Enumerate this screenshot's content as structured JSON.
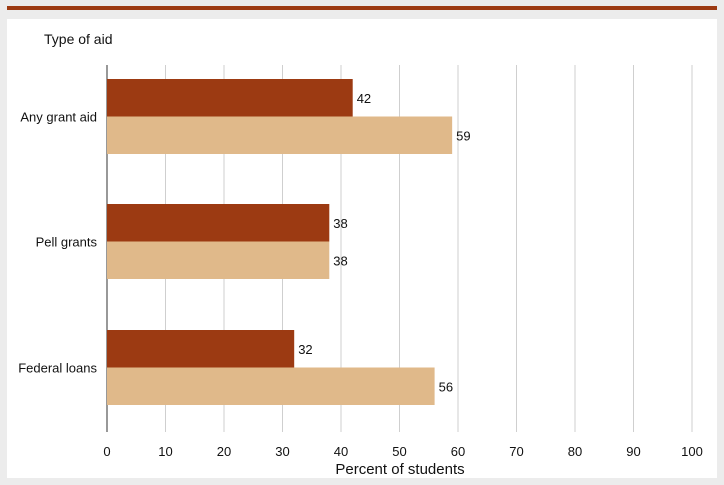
{
  "chart_data": {
    "type": "bar",
    "orientation": "horizontal",
    "categories": [
      "Any grant aid",
      "Pell grants",
      "Federal loans"
    ],
    "series": [
      {
        "values": [
          42,
          38,
          32
        ],
        "color": "#9c3a12"
      },
      {
        "values": [
          59,
          38,
          56
        ],
        "color": "#e0b98a"
      }
    ],
    "ylabel": "Type of aid",
    "xlabel": "Percent of students",
    "xlim": [
      0,
      100
    ],
    "x_ticks": [
      "0",
      "10",
      "20",
      "30",
      "40",
      "50",
      "60",
      "70",
      "80",
      "90",
      "100"
    ],
    "grid": true,
    "accent_color": "#9c3a12"
  }
}
